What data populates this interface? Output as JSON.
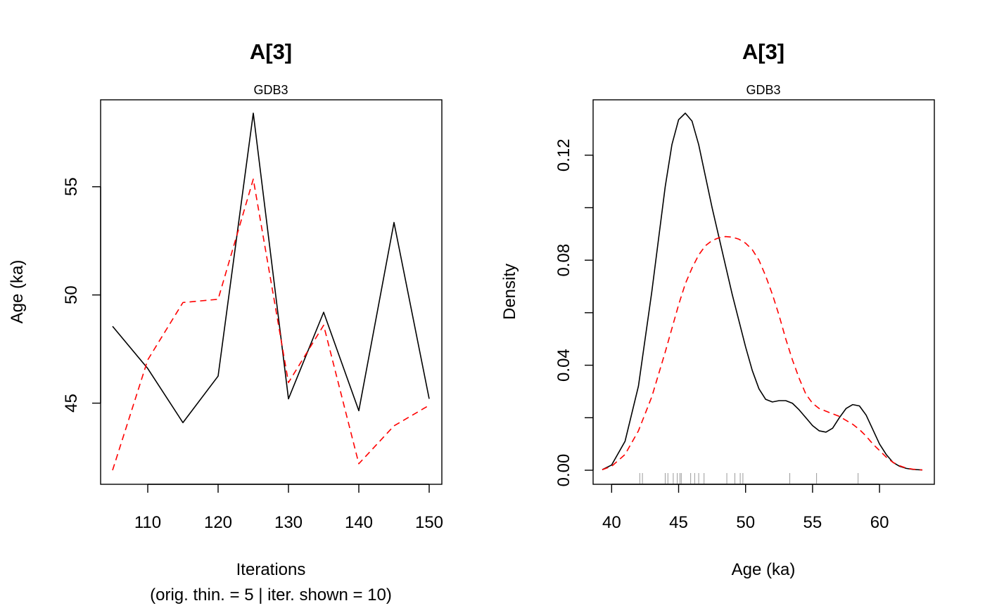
{
  "chart_data": [
    {
      "type": "line",
      "title": "A[3]",
      "subtitle": "GDB3",
      "xlabel": "Iterations",
      "xlabel2": "(orig. thin. = 5 | iter. shown = 10)",
      "ylabel": "Age (ka)",
      "x": [
        105,
        110,
        115,
        120,
        125,
        130,
        135,
        140,
        145,
        150
      ],
      "xlim": [
        105,
        150
      ],
      "ylim": [
        41.9,
        58.4
      ],
      "xticks": [
        "110",
        "120",
        "130",
        "140",
        "150"
      ],
      "yticks": [
        "45",
        "50",
        "55"
      ],
      "series": [
        {
          "values": [
            48.55,
            46.6,
            44.1,
            46.25,
            58.4,
            45.2,
            49.2,
            44.65,
            53.35,
            45.2
          ],
          "color": "#000000",
          "dash": "solid"
        },
        {
          "values": [
            41.9,
            47.0,
            49.65,
            49.8,
            55.35,
            45.95,
            48.6,
            42.2,
            43.95,
            44.9
          ],
          "color": "#ff0000",
          "dash": "dashed"
        }
      ]
    },
    {
      "type": "line",
      "title": "A[3]",
      "subtitle": "GDB3",
      "xlabel": "Age (ka)",
      "ylabel": "Density",
      "xlim": [
        39.3,
        63.2
      ],
      "ylim": [
        0,
        0.136
      ],
      "xticks": [
        "40",
        "45",
        "50",
        "55",
        "60"
      ],
      "yticks": [
        "0.00",
        "0.04",
        "0.08",
        "0.12"
      ],
      "series": [
        {
          "color": "#000000",
          "dash": "solid",
          "x": [
            39.3,
            40.0,
            41.0,
            42.0,
            43.0,
            44.0,
            44.5,
            45.0,
            45.5,
            46.0,
            46.5,
            47.0,
            47.5,
            48.0,
            48.5,
            49.0,
            49.5,
            50.0,
            50.5,
            51.0,
            51.5,
            52.0,
            52.5,
            53.0,
            53.5,
            54.0,
            54.5,
            55.0,
            55.5,
            56.0,
            56.5,
            57.0,
            57.5,
            58.0,
            58.5,
            59.0,
            59.5,
            60.0,
            60.5,
            61.0,
            61.5,
            62.0,
            62.5,
            63.2
          ],
          "y": [
            0.0002,
            0.002,
            0.011,
            0.032,
            0.068,
            0.108,
            0.124,
            0.1335,
            0.136,
            0.133,
            0.124,
            0.112,
            0.1,
            0.089,
            0.078,
            0.067,
            0.057,
            0.047,
            0.038,
            0.031,
            0.027,
            0.026,
            0.0265,
            0.0265,
            0.0255,
            0.023,
            0.02,
            0.017,
            0.015,
            0.0145,
            0.016,
            0.02,
            0.0235,
            0.025,
            0.0245,
            0.021,
            0.0155,
            0.01,
            0.006,
            0.003,
            0.0015,
            0.0007,
            0.0003,
            0.0001
          ]
        },
        {
          "color": "#ff0000",
          "dash": "dashed",
          "x": [
            39.3,
            40.0,
            41.0,
            42.0,
            43.0,
            44.0,
            44.5,
            45.0,
            45.5,
            46.0,
            46.5,
            47.0,
            47.5,
            48.0,
            48.5,
            49.0,
            49.5,
            50.0,
            50.5,
            51.0,
            51.5,
            52.0,
            52.5,
            53.0,
            53.5,
            54.0,
            54.5,
            55.0,
            55.5,
            56.0,
            56.5,
            57.0,
            57.5,
            58.0,
            58.5,
            59.0,
            59.5,
            60.0,
            60.5,
            61.0,
            61.5,
            62.0,
            62.5,
            63.2
          ],
          "y": [
            0.0002,
            0.0015,
            0.006,
            0.015,
            0.028,
            0.045,
            0.054,
            0.063,
            0.071,
            0.077,
            0.082,
            0.0855,
            0.0875,
            0.0885,
            0.089,
            0.0888,
            0.088,
            0.0865,
            0.084,
            0.08,
            0.074,
            0.067,
            0.059,
            0.05,
            0.042,
            0.035,
            0.029,
            0.0255,
            0.0235,
            0.0225,
            0.0215,
            0.0205,
            0.019,
            0.0175,
            0.0155,
            0.013,
            0.01,
            0.0075,
            0.005,
            0.003,
            0.0017,
            0.0008,
            0.0004,
            0.0001
          ]
        }
      ],
      "rug": [
        42.1,
        42.3,
        44.0,
        44.2,
        44.6,
        44.9,
        45.1,
        45.2,
        45.9,
        46.2,
        46.5,
        46.9,
        48.6,
        49.2,
        49.6,
        49.8,
        53.3,
        55.3,
        58.4
      ]
    }
  ]
}
